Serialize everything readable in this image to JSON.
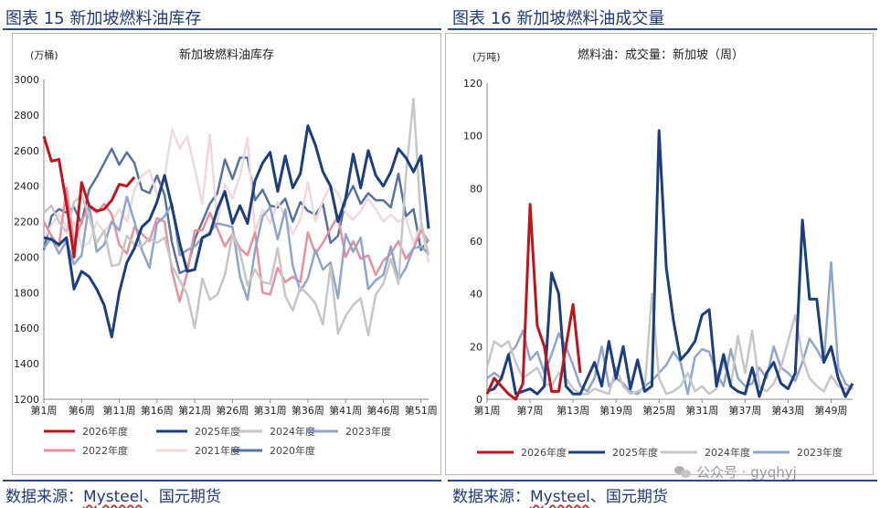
{
  "source_prefix": "数据来源：",
  "source_brand": "Mysteel",
  "source_suffix": "、国元期货",
  "watermark": "公众号 · gyqhyj",
  "chart_data": [
    {
      "id": "fig15",
      "type": "line",
      "figure_title": "图表 15 新加坡燃料油库存",
      "title": "新加坡燃料油库存",
      "ylabel": "(万桶)",
      "xlabel": "",
      "ylim": [
        1200,
        3000
      ],
      "yticks": [
        1200,
        1400,
        1600,
        1800,
        2000,
        2200,
        2400,
        2600,
        2800,
        3000
      ],
      "weeks": 52,
      "xticks": [
        {
          "week": 1,
          "label": "第1周"
        },
        {
          "week": 6,
          "label": "第6周"
        },
        {
          "week": 11,
          "label": "第11周"
        },
        {
          "week": 16,
          "label": "第16周"
        },
        {
          "week": 21,
          "label": "第21周"
        },
        {
          "week": 26,
          "label": "第26周"
        },
        {
          "week": 31,
          "label": "第31周"
        },
        {
          "week": 36,
          "label": "第36周"
        },
        {
          "week": 41,
          "label": "第41周"
        },
        {
          "week": 46,
          "label": "第46周"
        },
        {
          "week": 51,
          "label": "第51周"
        }
      ],
      "series": [
        {
          "name": "2020年度",
          "color": "#5572a0",
          "width": 2.5,
          "values": [
            2040,
            2230,
            2270,
            2250,
            2280,
            2190,
            2380,
            2450,
            2530,
            2610,
            2520,
            2590,
            2530,
            2380,
            2360,
            2460,
            2350,
            2080,
            1910,
            1930,
            2100,
            2200,
            2300,
            2360,
            2550,
            2440,
            2560,
            2560,
            2320,
            2380,
            2290,
            2280,
            2330,
            2200,
            2310,
            2260,
            2240,
            2300,
            2080,
            2120,
            2320,
            2400,
            2300,
            2360,
            2320,
            2320,
            2280,
            2470,
            2230,
            2270,
            2040,
            2100
          ]
        },
        {
          "name": "2021年度",
          "color": "#f0d8db",
          "width": 2.5,
          "values": [
            2100,
            2180,
            2240,
            2170,
            2200,
            2060,
            2080,
            2200,
            2140,
            2200,
            2270,
            2200,
            2380,
            2460,
            2490,
            2350,
            2450,
            2720,
            2610,
            2680,
            2500,
            2300,
            2690,
            2200,
            2410,
            2330,
            2460,
            2670,
            2140,
            2270,
            2190,
            2310,
            2230,
            2130,
            2210,
            2420,
            2200,
            2320,
            2400,
            2360,
            2250,
            2210,
            2260,
            2330,
            2270,
            2200,
            2240,
            2200,
            2220,
            2080,
            2180,
            1970
          ]
        },
        {
          "name": "2022年度",
          "color": "#e8909c",
          "width": 2.5,
          "values": [
            2200,
            2120,
            2060,
            2390,
            2080,
            2200,
            2290,
            2250,
            2300,
            2240,
            2070,
            2020,
            2170,
            2130,
            2090,
            2220,
            2200,
            1920,
            1750,
            1910,
            2150,
            2150,
            2250,
            2160,
            2060,
            2130,
            2050,
            2010,
            2140,
            1800,
            1790,
            1940,
            1860,
            1890,
            1860,
            2140,
            2020,
            2080,
            2160,
            2230,
            2000,
            2090,
            1990,
            2010,
            1900,
            1980,
            2020,
            2090,
            1990,
            2050,
            2150,
            2090
          ]
        },
        {
          "name": "2023年度",
          "color": "#8fa5c9",
          "width": 2.5,
          "values": [
            2050,
            2110,
            2020,
            2090,
            1960,
            2010,
            2300,
            2030,
            2070,
            2200,
            2150,
            2340,
            2200,
            2040,
            1940,
            2190,
            2230,
            2300,
            2010,
            2040,
            2060,
            2110,
            2140,
            2190,
            2180,
            2170,
            1890,
            1760,
            2040,
            2230,
            2280,
            2100,
            2270,
            1950,
            1810,
            1880,
            2040,
            1930,
            1970,
            1770,
            2130,
            2030,
            2110,
            1820,
            1870,
            1900,
            2060,
            1870,
            1940,
            2050,
            2060,
            2020
          ]
        },
        {
          "name": "2024年度",
          "color": "#c6c6c6",
          "width": 2.5,
          "values": [
            2250,
            2290,
            2200,
            2140,
            2310,
            2350,
            2230,
            2080,
            2150,
            1950,
            1960,
            2120,
            2070,
            2060,
            2110,
            2080,
            2110,
            1950,
            1870,
            1790,
            1600,
            1880,
            1760,
            1790,
            1900,
            2130,
            2030,
            1840,
            1930,
            1860,
            1850,
            2050,
            1780,
            1700,
            1830,
            1790,
            1740,
            1620,
            1950,
            1570,
            1670,
            1730,
            1770,
            1560,
            1790,
            1850,
            1990,
            1850,
            2460,
            2890,
            2200,
            2010
          ]
        },
        {
          "name": "2025年度",
          "color": "#1d3e7e",
          "width": 3,
          "values": [
            2110,
            2100,
            2070,
            2110,
            1820,
            1920,
            1890,
            1820,
            1730,
            1550,
            1800,
            1970,
            2050,
            2170,
            2210,
            2310,
            2460,
            2280,
            2080,
            1920,
            1930,
            2110,
            2130,
            2270,
            2370,
            2190,
            2290,
            2190,
            2430,
            2530,
            2590,
            2370,
            2570,
            2390,
            2470,
            2740,
            2630,
            2480,
            2400,
            2200,
            2330,
            2580,
            2390,
            2600,
            2460,
            2400,
            2480,
            2610,
            2560,
            2480,
            2570,
            2160
          ]
        },
        {
          "name": "2026年度",
          "color": "#c0141d",
          "width": 3,
          "values": [
            2680,
            2540,
            2550,
            2300,
            2000,
            2420,
            2290,
            2260,
            2270,
            2320,
            2410,
            2400,
            2450
          ]
        }
      ],
      "legend": [
        "2026年度",
        "2025年度",
        "2024年度",
        "2023年度",
        "2022年度",
        "2021年度",
        "2020年度"
      ]
    },
    {
      "id": "fig16",
      "type": "line",
      "figure_title": "图表 16 新加坡燃料油成交量",
      "title": "燃料油：成交量：新加坡（周）",
      "ylabel": "(万吨)",
      "xlabel": "",
      "ylim": [
        0,
        120
      ],
      "yticks": [
        0,
        20,
        40,
        60,
        80,
        100,
        120
      ],
      "weeks": 52,
      "xticks": [
        {
          "week": 1,
          "label": "第1周"
        },
        {
          "week": 7,
          "label": "第7周"
        },
        {
          "week": 13,
          "label": "第13周"
        },
        {
          "week": 19,
          "label": "第19周"
        },
        {
          "week": 25,
          "label": "第25周"
        },
        {
          "week": 31,
          "label": "第31周"
        },
        {
          "week": 37,
          "label": "第37周"
        },
        {
          "week": 43,
          "label": "第43周"
        },
        {
          "week": 49,
          "label": "第49周"
        }
      ],
      "series": [
        {
          "name": "2023年度",
          "color": "#8fa5c9",
          "width": 2.5,
          "values": [
            8,
            10,
            8,
            17,
            20,
            26,
            15,
            18,
            10,
            17,
            25,
            20,
            13,
            5,
            3,
            8,
            20,
            5,
            8,
            6,
            3,
            2,
            5,
            7,
            10,
            13,
            18,
            14,
            2,
            16,
            19,
            18,
            10,
            5,
            19,
            8,
            5,
            6,
            12,
            8,
            20,
            12,
            10,
            7,
            14,
            23,
            19,
            14,
            52,
            12,
            6,
            4
          ]
        },
        {
          "name": "2024年度",
          "color": "#c6c6c6",
          "width": 2.5,
          "values": [
            12,
            22,
            20,
            22,
            14,
            8,
            10,
            12,
            6,
            5,
            10,
            8,
            4,
            2,
            2,
            4,
            3,
            2,
            12,
            5,
            2,
            3,
            4,
            40,
            8,
            2,
            3,
            5,
            10,
            3,
            5,
            2,
            4,
            14,
            5,
            24,
            10,
            26,
            5,
            3,
            6,
            12,
            22,
            32,
            16,
            8,
            5,
            3,
            9,
            5,
            4,
            4
          ]
        },
        {
          "name": "2025年度",
          "color": "#1d3e7e",
          "width": 3,
          "values": [
            3,
            4,
            8,
            17,
            2,
            3,
            4,
            2,
            5,
            48,
            40,
            5,
            2,
            2,
            8,
            14,
            5,
            22,
            8,
            20,
            4,
            15,
            3,
            5,
            102,
            50,
            30,
            15,
            18,
            22,
            32,
            34,
            5,
            17,
            5,
            3,
            2,
            12,
            1,
            10,
            14,
            6,
            4,
            10,
            68,
            38,
            38,
            14,
            20,
            8,
            1,
            6
          ]
        },
        {
          "name": "2026年度",
          "color": "#c0141d",
          "width": 3,
          "values": [
            2,
            8,
            5,
            2,
            0,
            6,
            74,
            28,
            20,
            3,
            3,
            20,
            36,
            10
          ]
        }
      ],
      "legend": [
        "2026年度",
        "2025年度",
        "2024年度",
        "2023年度"
      ]
    }
  ]
}
